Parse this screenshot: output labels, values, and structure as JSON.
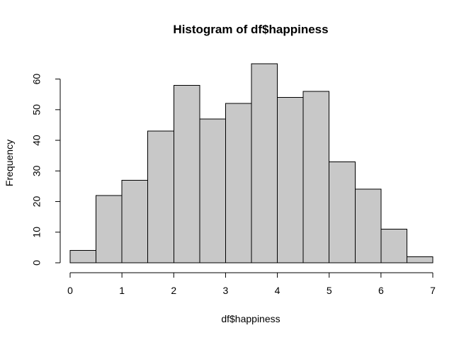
{
  "chart_data": {
    "type": "bar",
    "title": "Histogram of df$happiness",
    "xlabel": "df$happiness",
    "ylabel": "Frequency",
    "bin_width": 0.5,
    "bins": [
      {
        "x0": 0.0,
        "x1": 0.5,
        "value": 4
      },
      {
        "x0": 0.5,
        "x1": 1.0,
        "value": 22
      },
      {
        "x0": 1.0,
        "x1": 1.5,
        "value": 27
      },
      {
        "x0": 1.5,
        "x1": 2.0,
        "value": 43
      },
      {
        "x0": 2.0,
        "x1": 2.5,
        "value": 58
      },
      {
        "x0": 2.5,
        "x1": 3.0,
        "value": 47
      },
      {
        "x0": 3.0,
        "x1": 3.5,
        "value": 52
      },
      {
        "x0": 3.5,
        "x1": 4.0,
        "value": 65
      },
      {
        "x0": 4.0,
        "x1": 4.5,
        "value": 54
      },
      {
        "x0": 4.5,
        "x1": 5.0,
        "value": 56
      },
      {
        "x0": 5.0,
        "x1": 5.5,
        "value": 33
      },
      {
        "x0": 5.5,
        "x1": 6.0,
        "value": 24
      },
      {
        "x0": 6.0,
        "x1": 6.5,
        "value": 11
      },
      {
        "x0": 6.5,
        "x1": 7.0,
        "value": 2
      }
    ],
    "xlim": [
      0,
      7
    ],
    "ylim": [
      0,
      65
    ],
    "x_ticks": [
      0,
      1,
      2,
      3,
      4,
      5,
      6,
      7
    ],
    "y_ticks": [
      0,
      10,
      20,
      30,
      40,
      50,
      60
    ],
    "grid": false,
    "legend": "none",
    "colors": {
      "bar_fill": "#c8c8c8",
      "bar_stroke": "#000000",
      "axis": "#000000",
      "text": "#000000"
    }
  }
}
